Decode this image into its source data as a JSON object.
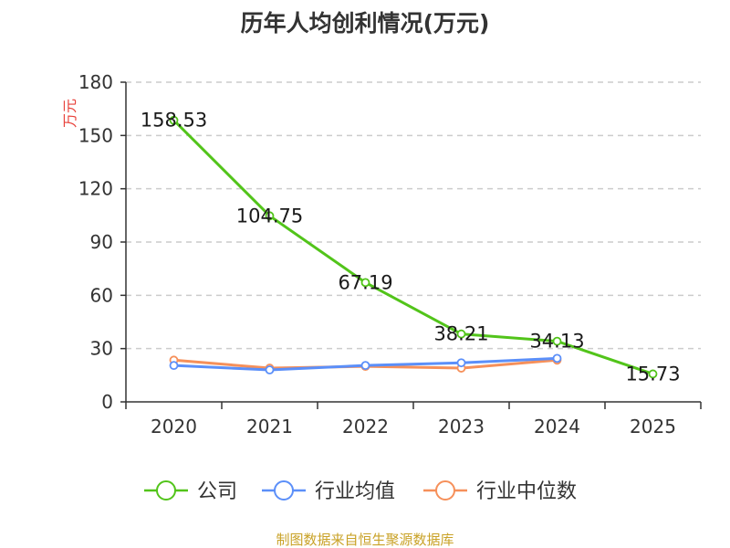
{
  "chart_data": {
    "type": "line",
    "title": "历年人均创利情况(万元)",
    "ylabel": "万元",
    "xlabel": "",
    "categories": [
      "2020",
      "2021",
      "2022",
      "2023",
      "2024",
      "2025"
    ],
    "y_ticks": [
      "0",
      "30",
      "60",
      "90",
      "120",
      "150",
      "180"
    ],
    "ylim": [
      0,
      180
    ],
    "grid": true,
    "legend_position": "bottom",
    "series": [
      {
        "name": "公司",
        "color": "#52c41a",
        "values": [
          158.53,
          104.75,
          67.19,
          38.21,
          34.13,
          15.73
        ],
        "labels": [
          "158.53",
          "104.75",
          "67.19",
          "38.21",
          "34.13",
          "15.73"
        ]
      },
      {
        "name": "行业均值",
        "color": "#5b8ff9",
        "values": [
          20.5,
          18.0,
          20.5,
          22.0,
          24.5,
          null
        ]
      },
      {
        "name": "行业中位数",
        "color": "#f6905a",
        "values": [
          23.5,
          19.0,
          20.0,
          19.0,
          23.5,
          null
        ]
      }
    ],
    "source": "制图数据来自恒生聚源数据库"
  }
}
